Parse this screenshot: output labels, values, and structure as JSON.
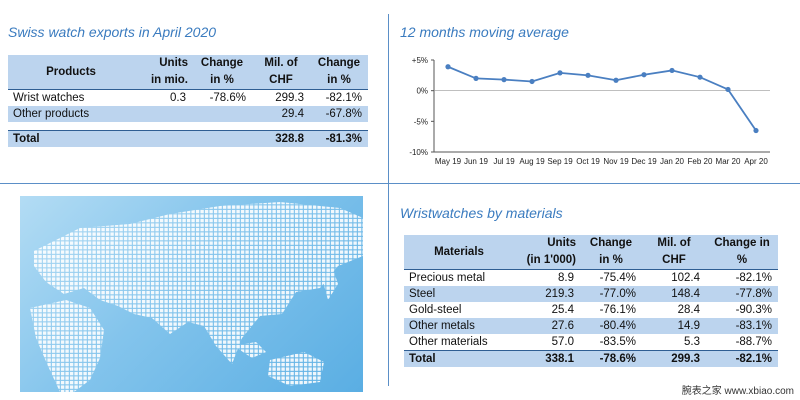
{
  "left_title": "Swiss watch exports in April  2020",
  "chart_title": "12 months moving average",
  "materials_title": "Wristwatches by materials",
  "products_table": {
    "headers": {
      "col1": "Products",
      "col2a": "Units",
      "col2b": "in mio.",
      "col3a": "Change",
      "col3b": "in %",
      "col4a": "Mil. of",
      "col4b": "CHF",
      "col5a": "Change",
      "col5b": "in %"
    },
    "rows": [
      {
        "name": "Wrist watches",
        "units": "0.3",
        "units_change": "-78.6%",
        "chf": "299.3",
        "chf_change": "-82.1%"
      },
      {
        "name": "Other products",
        "units": "",
        "units_change": "",
        "chf": "29.4",
        "chf_change": "-67.8%"
      }
    ],
    "total": {
      "name": "Total",
      "units": "",
      "units_change": "",
      "chf": "328.8",
      "chf_change": "-81.3%"
    }
  },
  "materials_table": {
    "headers": {
      "col1": "Materials",
      "col2a": "Units",
      "col2b": "(in 1'000)",
      "col3a": "Change",
      "col3b": "in %",
      "col4a": "Mil. of",
      "col4b": "CHF",
      "col5a": "Change in",
      "col5b": "%"
    },
    "rows": [
      {
        "name": "Precious metal",
        "units": "8.9",
        "units_change": "-75.4%",
        "chf": "102.4",
        "chf_change": "-82.1%"
      },
      {
        "name": "Steel",
        "units": "219.3",
        "units_change": "-77.0%",
        "chf": "148.4",
        "chf_change": "-77.8%"
      },
      {
        "name": "Gold-steel",
        "units": "25.4",
        "units_change": "-76.1%",
        "chf": "28.4",
        "chf_change": "-90.3%"
      },
      {
        "name": "Other metals",
        "units": "27.6",
        "units_change": "-80.4%",
        "chf": "14.9",
        "chf_change": "-83.1%"
      },
      {
        "name": "Other materials",
        "units": "57.0",
        "units_change": "-83.5%",
        "chf": "5.3",
        "chf_change": "-88.7%"
      }
    ],
    "total": {
      "name": "Total",
      "units": "338.1",
      "units_change": "-78.6%",
      "chf": "299.3",
      "chf_change": "-82.1%"
    }
  },
  "watermark": "腕表之家 www.xbiao.com",
  "colors": {
    "accent": "#3a7bbf",
    "table_band": "#bcd4ee",
    "line": "#4a7fc1"
  },
  "chart_data": {
    "type": "line",
    "title": "12 months moving average",
    "categories": [
      "May 19",
      "Jun 19",
      "Jul 19",
      "Aug 19",
      "Sep 19",
      "Oct 19",
      "Nov 19",
      "Dec 19",
      "Jan 20",
      "Feb 20",
      "Mar 20",
      "Apr 20"
    ],
    "series": [
      {
        "values": [
          3.9,
          2.0,
          1.8,
          1.5,
          2.9,
          2.5,
          1.7,
          2.6,
          3.3,
          2.2,
          0.2,
          -6.5
        ]
      }
    ],
    "y_ticks": [
      "+5%",
      "0%",
      "-5%",
      "-10%"
    ],
    "y_tick_values": [
      5,
      0,
      -5,
      -10
    ],
    "ylim": [
      -10,
      5
    ],
    "grid": false,
    "xlabel": "",
    "ylabel": ""
  }
}
